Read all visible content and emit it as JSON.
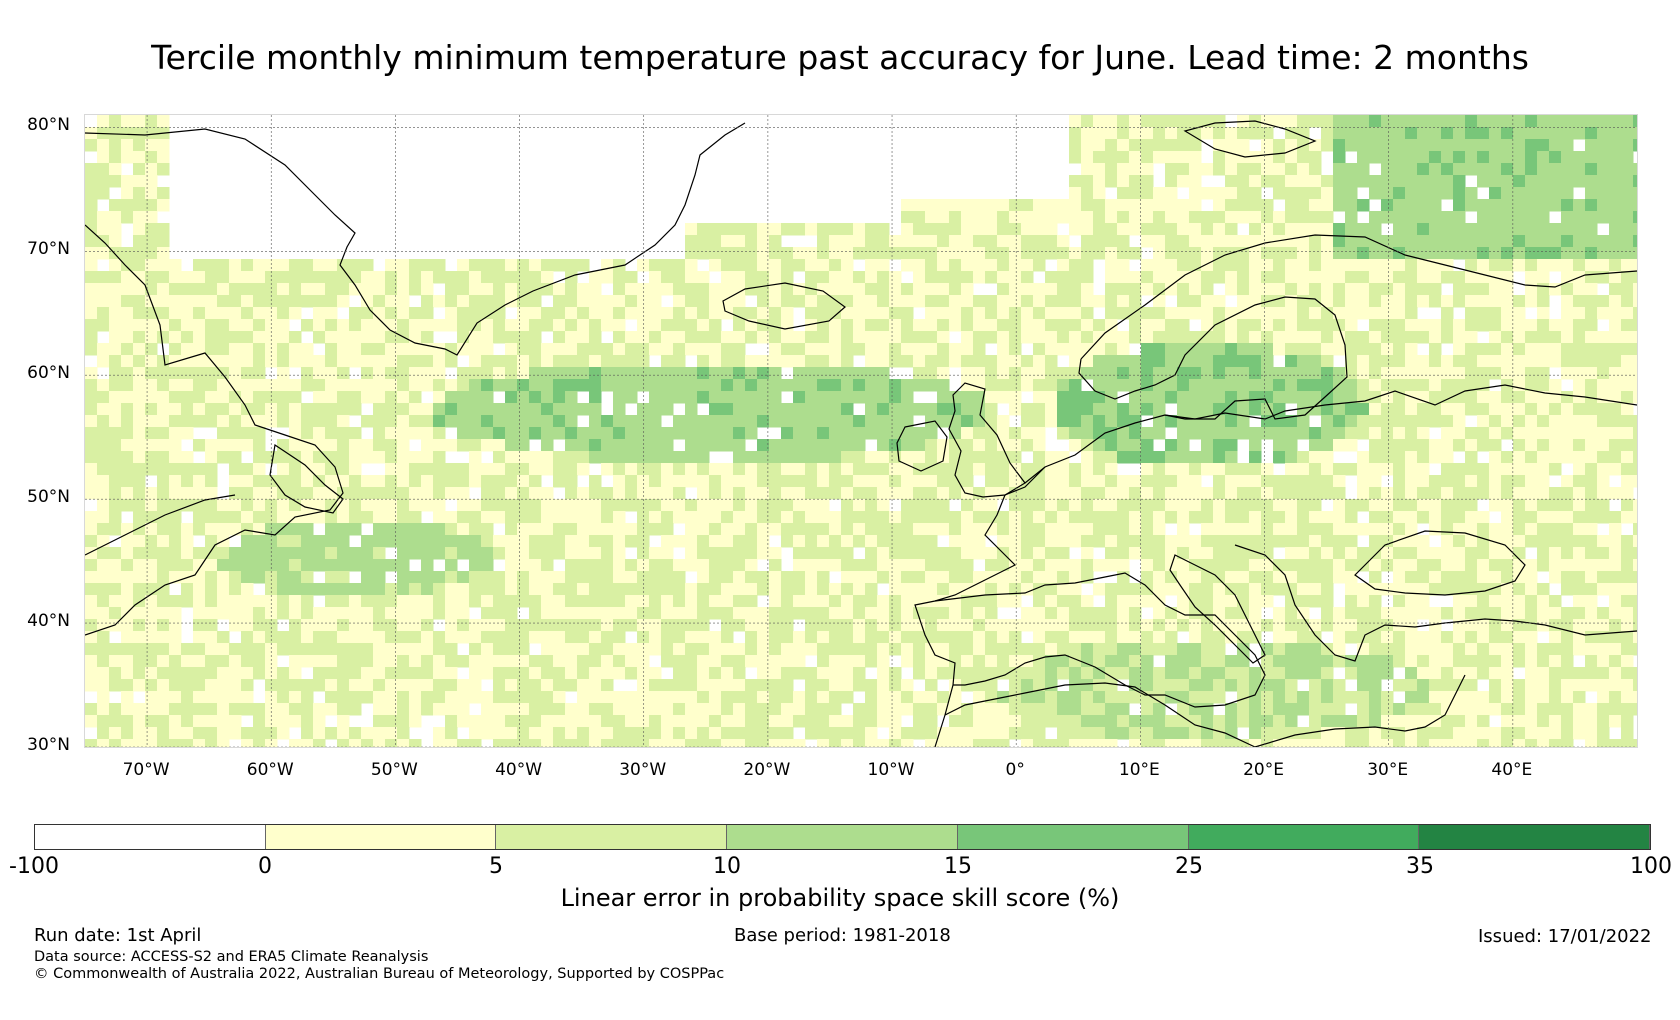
{
  "title": "Tercile monthly minimum temperature past accuracy for June. Lead time: 2 months",
  "map": {
    "lat_labels": [
      "80°N",
      "70°N",
      "60°N",
      "50°N",
      "40°N",
      "30°N"
    ],
    "lon_labels": [
      "70°W",
      "60°W",
      "50°W",
      "40°W",
      "30°W",
      "20°W",
      "10°W",
      "0°",
      "10°E",
      "20°E",
      "30°E",
      "40°E"
    ],
    "lon_range": [
      -75,
      50
    ],
    "lat_range": [
      30,
      81
    ],
    "grid": true
  },
  "colorbar": {
    "ticks": [
      "-100",
      "0",
      "5",
      "10",
      "15",
      "25",
      "35",
      "100"
    ],
    "colors": [
      "#ffffff",
      "#ffffcc",
      "#d9f0a3",
      "#addd8e",
      "#78c679",
      "#41ab5d",
      "#238443"
    ],
    "label": "Linear error in probability space skill score (%)"
  },
  "footer": {
    "run_date": "Run date: 1st April",
    "base_period": "Base period: 1981-2018",
    "issued": "Issued: 17/01/2022",
    "data_source": "Data source: ACCESS-S2 and ERA5 Climate Reanalysis",
    "copyright": "© Commonwealth of Australia 2022, Australian Bureau of Meteorology, Supported by COSPPac"
  }
}
